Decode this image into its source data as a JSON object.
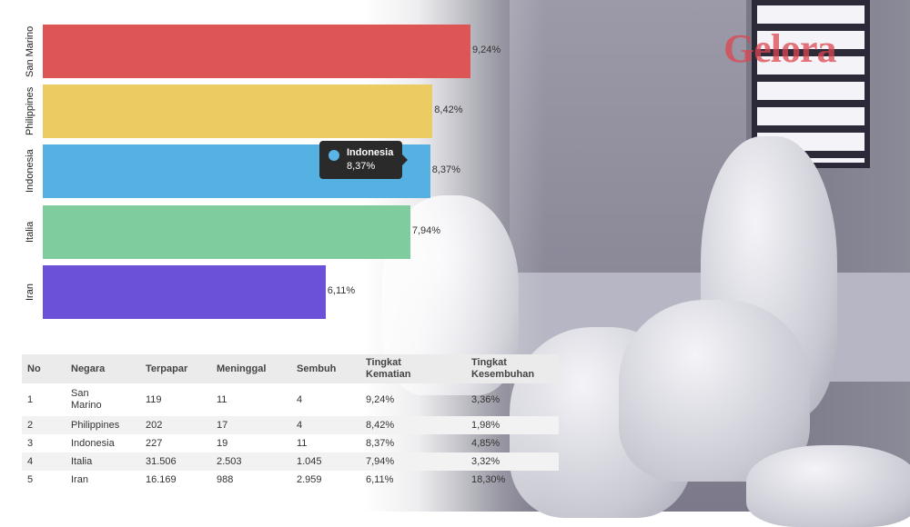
{
  "chart_data": {
    "type": "bar",
    "orientation": "horizontal",
    "categories": [
      "San Marino",
      "Philippines",
      "Indonesia",
      "Italia",
      "Iran"
    ],
    "values": [
      9.24,
      8.42,
      8.37,
      7.94,
      6.11
    ],
    "value_labels": [
      "9,24%",
      "8,42%",
      "8,37%",
      "7,94%",
      "6,11%"
    ],
    "colors": [
      "#dd5555",
      "#eccb63",
      "#56b1e3",
      "#7fcc9f",
      "#6a51d8"
    ],
    "xlim": [
      0,
      9.24
    ],
    "grid": false,
    "tooltip": {
      "name": "Indonesia",
      "value": "8,37%",
      "color": "#5ab4e6"
    }
  },
  "table": {
    "headers": [
      "No",
      "Negara",
      "Terpapar",
      "Meninggal",
      "Sembuh",
      "Tingkat Kematian",
      "Tingkat Kesembuhan"
    ],
    "rows": [
      [
        "1",
        "San Marino",
        "119",
        "11",
        "4",
        "9,24%",
        "3,36%"
      ],
      [
        "2",
        "Philippines",
        "202",
        "17",
        "4",
        "8,42%",
        "1,98%"
      ],
      [
        "3",
        "Indonesia",
        "227",
        "19",
        "11",
        "8,37%",
        "4,85%"
      ],
      [
        "4",
        "Italia",
        "31.506",
        "2.503",
        "1.045",
        "7,94%",
        "3,32%"
      ],
      [
        "5",
        "Iran",
        "16.169",
        "988",
        "2.959",
        "6,11%",
        "18,30%"
      ]
    ]
  },
  "watermark": "Gelora"
}
